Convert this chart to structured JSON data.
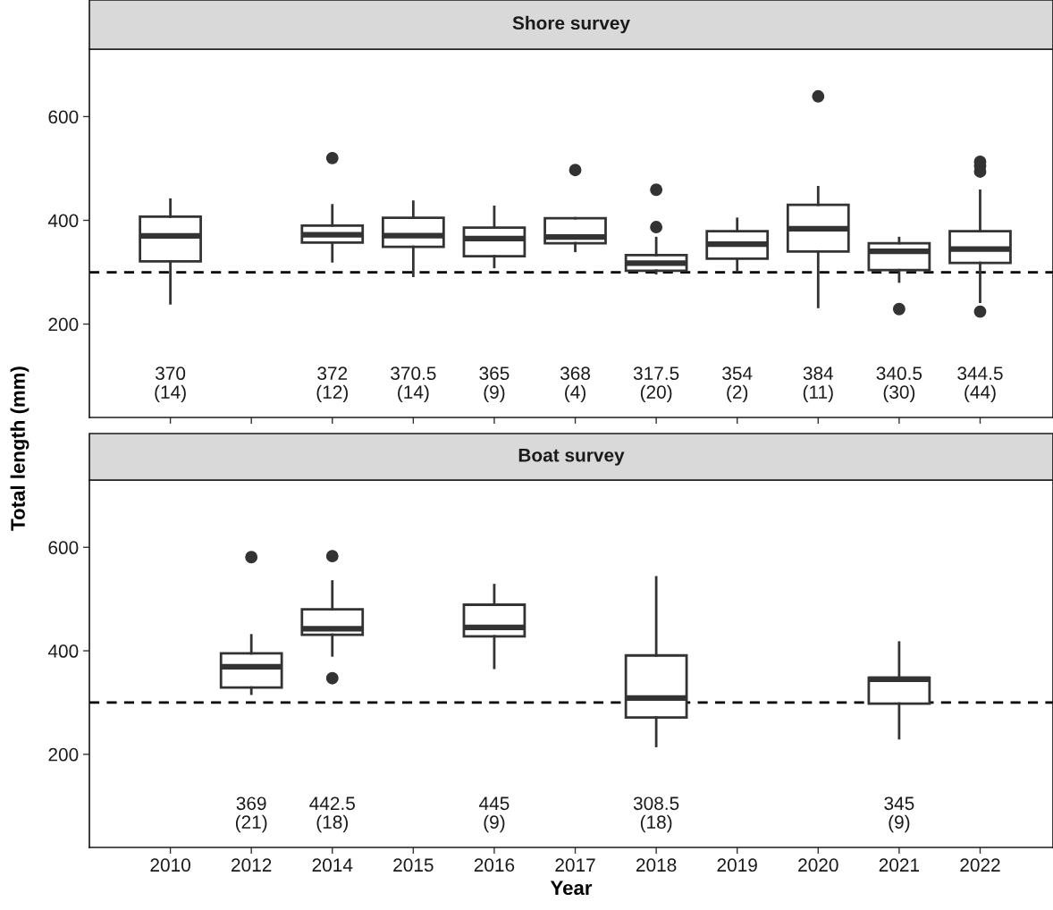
{
  "chart_data": [
    {
      "type": "box",
      "title": "Shore survey",
      "ylabel": "Total length (mm)",
      "categories": [
        "2010",
        "2012",
        "2014",
        "2015",
        "2016",
        "2017",
        "2018",
        "2019",
        "2020",
        "2021",
        "2022"
      ],
      "boxes": [
        {
          "low": 240,
          "q1": 321,
          "median": 370,
          "q3": 407,
          "high": 440
        },
        null,
        {
          "low": 321,
          "q1": 357,
          "median": 372,
          "q3": 390,
          "high": 429,
          "outliers": [
            520
          ]
        },
        {
          "low": 293,
          "q1": 349,
          "median": 370.5,
          "q3": 405,
          "high": 436
        },
        {
          "low": 310,
          "q1": 331,
          "median": 365,
          "q3": 386,
          "high": 426
        },
        {
          "low": 341,
          "q1": 356,
          "median": 368,
          "q3": 404,
          "high": 404,
          "outliers": [
            497
          ]
        },
        {
          "low": 298,
          "q1": 303,
          "median": 317.5,
          "q3": 333,
          "high": 366,
          "outliers": [
            387,
            459
          ]
        },
        {
          "low": 302,
          "q1": 326,
          "median": 354,
          "q3": 379,
          "high": 403
        },
        {
          "low": 233,
          "q1": 340,
          "median": 384,
          "q3": 430,
          "high": 464,
          "outliers": [
            639
          ]
        },
        {
          "low": 282,
          "q1": 304,
          "median": 340.5,
          "q3": 356,
          "high": 366,
          "outliers": [
            229
          ]
        },
        {
          "low": 243,
          "q1": 318,
          "median": 344.5,
          "q3": 379,
          "high": 457,
          "outliers": [
            224,
            494,
            505,
            513
          ]
        }
      ],
      "value_labels": [
        "370\n(14)",
        null,
        "372\n(12)",
        "370.5\n(14)",
        "365\n(9)",
        "368\n(4)",
        "317.5\n(20)",
        "354\n(2)",
        "384\n(11)",
        "340.5\n(30)",
        "344.5\n(44)"
      ],
      "ylim": [
        20,
        730
      ],
      "yticks": [
        200,
        400,
        600
      ],
      "tick_labels": "y",
      "grid": false,
      "marker": "circle",
      "ref_lines": [
        {
          "axis": "y",
          "value": 300,
          "label": null,
          "color": "#000000",
          "line_style": "dashed"
        }
      ]
    },
    {
      "type": "box",
      "title": "Boat survey",
      "xlabel": "Year",
      "categories": [
        "2010",
        "2012",
        "2014",
        "2015",
        "2016",
        "2017",
        "2018",
        "2019",
        "2020",
        "2021",
        "2022"
      ],
      "boxes": [
        null,
        {
          "low": 317,
          "q1": 329,
          "median": 369,
          "q3": 395,
          "high": 430,
          "outliers": [
            581
          ]
        },
        {
          "low": 391,
          "q1": 431,
          "median": 442.5,
          "q3": 480,
          "high": 534,
          "outliers": [
            347,
            583
          ]
        },
        null,
        {
          "low": 367,
          "q1": 428,
          "median": 445,
          "q3": 489,
          "high": 527
        },
        null,
        {
          "low": 216,
          "q1": 271,
          "median": 308.5,
          "q3": 391,
          "high": 542
        },
        null,
        null,
        {
          "low": 231,
          "q1": 298,
          "median": 345,
          "q3": 348,
          "high": 416
        },
        null
      ],
      "value_labels": [
        null,
        "369\n(21)",
        "442.5\n(18)",
        null,
        "445\n(9)",
        null,
        "308.5\n(18)",
        null,
        null,
        "345\n(9)",
        null
      ],
      "ylim": [
        20,
        730
      ],
      "yticks": [
        200,
        400,
        600
      ],
      "grid": false,
      "marker": "circle",
      "ref_lines": [
        {
          "axis": "y",
          "value": 300,
          "label": null,
          "color": "#000000",
          "line_style": "dashed"
        }
      ]
    }
  ]
}
